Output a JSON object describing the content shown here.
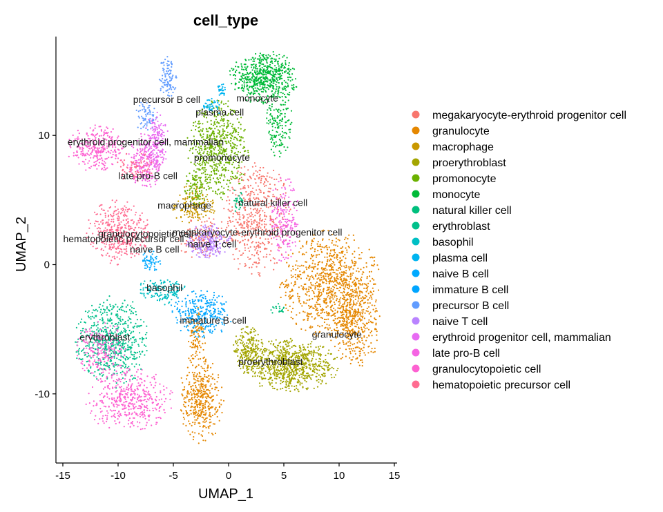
{
  "chart_data": {
    "type": "scatter",
    "title": "cell_type",
    "xlabel": "UMAP_1",
    "ylabel": "UMAP_2",
    "xlim": [
      -15.5,
      15
    ],
    "ylim": [
      -15.3,
      17.6
    ],
    "xticks": [
      -15,
      -10,
      -5,
      0,
      5,
      10,
      15
    ],
    "yticks": [
      -10,
      0,
      10
    ],
    "grid": false,
    "legend_position": "right",
    "series": [
      {
        "name": "megakaryocyte-erythroid progenitor cell",
        "color": "#F8766D",
        "blobs": [
          {
            "cx": -2.5,
            "cy": 2.2,
            "rx": 2.0,
            "ry": 1.6,
            "n": 120
          },
          {
            "cx": 2.5,
            "cy": 3.5,
            "rx": 2.8,
            "ry": 4.0,
            "n": 520
          }
        ]
      },
      {
        "name": "granulocyte",
        "color": "#E58700",
        "blobs": [
          {
            "cx": 9.2,
            "cy": -1.5,
            "rx": 4.0,
            "ry": 3.8,
            "n": 900
          },
          {
            "cx": 11.5,
            "cy": -4.5,
            "rx": 2.0,
            "ry": 3.0,
            "n": 400
          },
          {
            "cx": -2.5,
            "cy": -10.5,
            "rx": 1.8,
            "ry": 3.0,
            "n": 420
          },
          {
            "cx": -3.0,
            "cy": -5.5,
            "rx": 0.8,
            "ry": 2.0,
            "n": 100
          }
        ]
      },
      {
        "name": "macrophage",
        "color": "#C99800",
        "blobs": [
          {
            "cx": -3.0,
            "cy": 4.5,
            "rx": 1.8,
            "ry": 1.5,
            "n": 150
          }
        ]
      },
      {
        "name": "proerythroblast",
        "color": "#A3A500",
        "blobs": [
          {
            "cx": 5.5,
            "cy": -7.8,
            "rx": 4.0,
            "ry": 1.8,
            "n": 800
          },
          {
            "cx": 1.8,
            "cy": -6.5,
            "rx": 1.2,
            "ry": 1.5,
            "n": 200
          }
        ]
      },
      {
        "name": "promonocyte",
        "color": "#6BB100",
        "blobs": [
          {
            "cx": -1.0,
            "cy": 9.0,
            "rx": 2.5,
            "ry": 3.5,
            "n": 620
          },
          {
            "cx": -3.0,
            "cy": 6.0,
            "rx": 1.0,
            "ry": 1.5,
            "n": 100
          }
        ]
      },
      {
        "name": "monocyte",
        "color": "#00BA38",
        "blobs": [
          {
            "cx": 3.2,
            "cy": 14.5,
            "rx": 2.8,
            "ry": 1.8,
            "n": 620
          },
          {
            "cx": 4.5,
            "cy": 11.0,
            "rx": 1.2,
            "ry": 2.5,
            "n": 150
          }
        ]
      },
      {
        "name": "natural killer cell",
        "color": "#00BF7D",
        "blobs": [
          {
            "cx": 0.8,
            "cy": 5.0,
            "rx": 0.5,
            "ry": 0.8,
            "n": 30
          },
          {
            "cx": 4.5,
            "cy": -3.5,
            "rx": 0.6,
            "ry": 0.6,
            "n": 20
          }
        ]
      },
      {
        "name": "erythroblast",
        "color": "#00C08B",
        "blobs": [
          {
            "cx": -10.5,
            "cy": -6.0,
            "rx": 3.0,
            "ry": 3.2,
            "n": 620
          }
        ]
      },
      {
        "name": "basophil",
        "color": "#00BFC4",
        "blobs": [
          {
            "cx": -6.0,
            "cy": -2.0,
            "rx": 2.0,
            "ry": 1.0,
            "n": 150
          }
        ]
      },
      {
        "name": "plasma cell",
        "color": "#00B4F0",
        "blobs": [
          {
            "cx": -1.5,
            "cy": 12.2,
            "rx": 0.8,
            "ry": 0.6,
            "n": 40
          },
          {
            "cx": -0.7,
            "cy": 13.5,
            "rx": 0.5,
            "ry": 0.5,
            "n": 30
          }
        ]
      },
      {
        "name": "naive B cell",
        "color": "#00A9FF",
        "blobs": [
          {
            "cx": -7.0,
            "cy": 0.3,
            "rx": 0.8,
            "ry": 0.7,
            "n": 60
          }
        ]
      },
      {
        "name": "immature B cell",
        "color": "#00A5FF",
        "blobs": [
          {
            "cx": -2.5,
            "cy": -3.8,
            "rx": 2.5,
            "ry": 1.6,
            "n": 300
          }
        ]
      },
      {
        "name": "precursor B cell",
        "color": "#619CFF",
        "blobs": [
          {
            "cx": -5.5,
            "cy": 14.5,
            "rx": 0.7,
            "ry": 1.5,
            "n": 100
          },
          {
            "cx": -7.5,
            "cy": 11.5,
            "rx": 1.0,
            "ry": 1.0,
            "n": 70
          }
        ]
      },
      {
        "name": "naive T cell",
        "color": "#B983FF",
        "blobs": [
          {
            "cx": -1.8,
            "cy": 1.8,
            "rx": 1.8,
            "ry": 1.2,
            "n": 220
          }
        ]
      },
      {
        "name": "erythroid progenitor cell, mammalian",
        "color": "#E76BF3",
        "blobs": [
          {
            "cx": -6.5,
            "cy": 9.5,
            "rx": 1.0,
            "ry": 2.0,
            "n": 180
          }
        ]
      },
      {
        "name": "late pro-B cell",
        "color": "#F564E3",
        "blobs": [
          {
            "cx": -7.5,
            "cy": 8.0,
            "rx": 1.5,
            "ry": 2.0,
            "n": 220
          },
          {
            "cx": 5.0,
            "cy": 3.5,
            "rx": 1.2,
            "ry": 3.0,
            "n": 200
          }
        ]
      },
      {
        "name": "granulocytopoietic cell",
        "color": "#FD61D1",
        "blobs": [
          {
            "cx": -12.0,
            "cy": 9.0,
            "rx": 2.3,
            "ry": 1.6,
            "n": 300
          },
          {
            "cx": -9.0,
            "cy": -10.5,
            "rx": 3.5,
            "ry": 2.2,
            "n": 450
          },
          {
            "cx": -11.5,
            "cy": -6.5,
            "rx": 2.0,
            "ry": 2.0,
            "n": 200
          }
        ]
      },
      {
        "name": "hematopoietic precursor cell",
        "color": "#FF6C91",
        "blobs": [
          {
            "cx": -10.0,
            "cy": 2.5,
            "rx": 2.5,
            "ry": 2.2,
            "n": 420
          },
          {
            "cx": -8.5,
            "cy": 7.5,
            "rx": 1.5,
            "ry": 1.2,
            "n": 80
          }
        ]
      }
    ],
    "cluster_labels": [
      {
        "text": "precursor B cell",
        "x": -5.6,
        "y": 12.8
      },
      {
        "text": "monocyte",
        "x": 2.6,
        "y": 12.9
      },
      {
        "text": "plasma cell",
        "x": -0.8,
        "y": 11.8
      },
      {
        "text": "erythroid progenitor cell, mammalian",
        "x": -7.5,
        "y": 9.5
      },
      {
        "text": "promonocyte",
        "x": -0.6,
        "y": 8.3
      },
      {
        "text": "late pro-B cell",
        "x": -7.3,
        "y": 6.9
      },
      {
        "text": "macrophage",
        "x": -4.0,
        "y": 4.6
      },
      {
        "text": "natural killer cell",
        "x": 4.0,
        "y": 4.8
      },
      {
        "text": "megakaryocyte-erythroid progenitor cell",
        "x": 2.6,
        "y": 2.5
      },
      {
        "text": "granulocytopoietic cell",
        "x": -7.5,
        "y": 2.4
      },
      {
        "text": "hematopoietic precursor cell",
        "x": -9.5,
        "y": 2.0
      },
      {
        "text": "naive T cell",
        "x": -1.5,
        "y": 1.6
      },
      {
        "text": "naive B cell",
        "x": -6.7,
        "y": 1.2
      },
      {
        "text": "basophil",
        "x": -5.8,
        "y": -1.8
      },
      {
        "text": "immature B cell",
        "x": -1.4,
        "y": -4.3
      },
      {
        "text": "granulocyte",
        "x": 9.8,
        "y": -5.4
      },
      {
        "text": "erythroblast",
        "x": -11.2,
        "y": -5.6
      },
      {
        "text": "proerythroblast",
        "x": 3.8,
        "y": -7.5
      }
    ]
  }
}
